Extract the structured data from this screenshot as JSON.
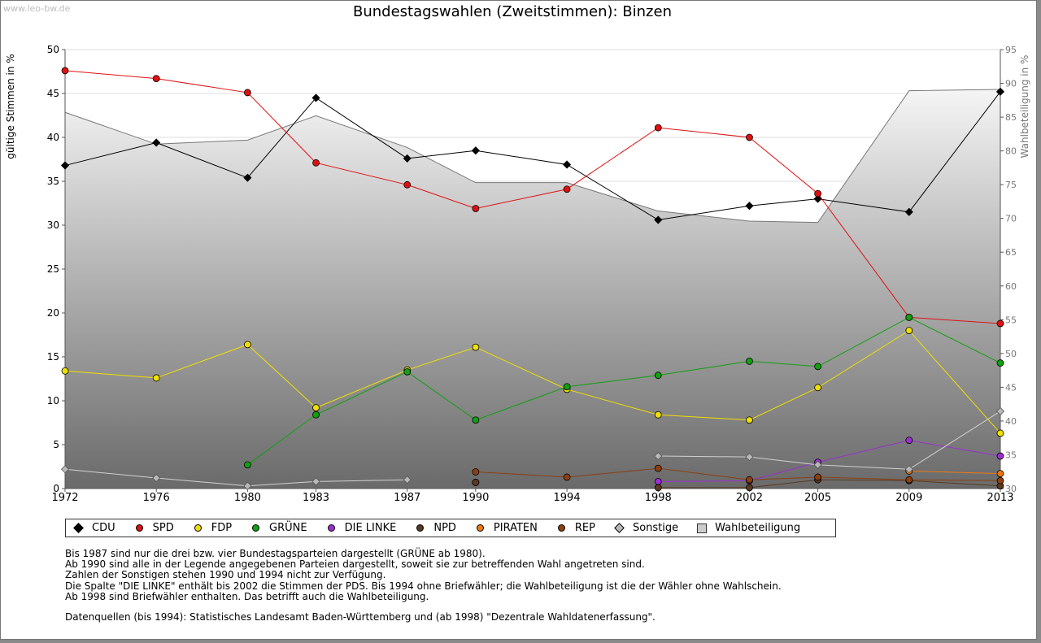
{
  "watermark": "www.leo-bw.de",
  "title": "Bundestagswahlen (Zweitstimmen): Binzen",
  "chart_data": {
    "type": "line",
    "title": "Bundestagswahlen (Zweitstimmen): Binzen",
    "ylabel": "gültige Stimmen in %",
    "y2label": "Wahlbeteiligung in %",
    "ylim": [
      0,
      50
    ],
    "y2lim": [
      30,
      95
    ],
    "yticks": [
      "0",
      "5",
      "10",
      "15",
      "20",
      "25",
      "30",
      "35",
      "40",
      "45",
      "50"
    ],
    "y2ticks": [
      "30",
      "35",
      "40",
      "45",
      "50",
      "55",
      "60",
      "65",
      "70",
      "75",
      "80",
      "85",
      "90",
      "95"
    ],
    "x": [
      "1972",
      "1976",
      "1980",
      "1983",
      "1987",
      "1990",
      "1994",
      "1998",
      "2002",
      "2005",
      "2009",
      "2013"
    ],
    "grid": true,
    "series": [
      {
        "name": "CDU",
        "color": "#000000",
        "values": [
          36.8,
          39.4,
          35.4,
          44.5,
          37.6,
          38.5,
          36.9,
          30.6,
          32.2,
          33.0,
          31.5,
          45.2
        ]
      },
      {
        "name": "SPD",
        "color": "#e01010",
        "values": [
          47.6,
          46.7,
          45.1,
          37.1,
          34.6,
          31.9,
          34.1,
          41.1,
          40.0,
          33.6,
          19.5,
          18.8
        ]
      },
      {
        "name": "FDP",
        "color": "#f0e000",
        "values": [
          13.4,
          12.6,
          16.4,
          9.2,
          13.5,
          16.1,
          11.3,
          8.4,
          7.8,
          11.5,
          18.0,
          6.3
        ]
      },
      {
        "name": "GRÜNE",
        "color": "#10a010",
        "values": [
          null,
          null,
          2.7,
          8.4,
          13.3,
          7.8,
          11.6,
          12.9,
          14.5,
          13.9,
          19.5,
          14.3
        ]
      },
      {
        "name": "DIE LINKE",
        "color": "#9b30d0",
        "values": [
          null,
          null,
          null,
          null,
          null,
          0.7,
          null,
          0.8,
          0.9,
          3.0,
          5.5,
          3.7
        ]
      },
      {
        "name": "NPD",
        "color": "#5a3a20",
        "values": [
          null,
          null,
          null,
          null,
          null,
          0.7,
          null,
          0.1,
          0.1,
          1.0,
          0.9,
          0.3
        ]
      },
      {
        "name": "PIRATEN",
        "color": "#f07810",
        "values": [
          null,
          null,
          null,
          null,
          null,
          null,
          null,
          null,
          null,
          null,
          2.0,
          1.7
        ]
      },
      {
        "name": "REP",
        "color": "#8b4010",
        "values": [
          null,
          null,
          null,
          null,
          null,
          1.9,
          1.3,
          2.3,
          1.0,
          1.3,
          1.0,
          0.9
        ]
      },
      {
        "name": "Sonstige",
        "color": "#b8b8b8",
        "values": [
          2.2,
          1.2,
          0.3,
          0.8,
          1.0,
          null,
          null,
          3.7,
          3.6,
          2.7,
          2.2,
          8.8
        ]
      }
    ],
    "wahlbeteiligung": {
      "name": "Wahlbeteiligung",
      "values": [
        85.7,
        81.0,
        81.6,
        85.2,
        80.5,
        75.3,
        75.3,
        71.1,
        69.6,
        69.4,
        88.9,
        89.1
      ]
    }
  },
  "legend": [
    {
      "label": "CDU",
      "color": "#000000"
    },
    {
      "label": "SPD",
      "color": "#e01010"
    },
    {
      "label": "FDP",
      "color": "#f0e000"
    },
    {
      "label": "GRÜNE",
      "color": "#10a010"
    },
    {
      "label": "DIE LINKE",
      "color": "#9b30d0"
    },
    {
      "label": "NPD",
      "color": "#5a3a20"
    },
    {
      "label": "PIRATEN",
      "color": "#f07810"
    },
    {
      "label": "REP",
      "color": "#8b4010"
    },
    {
      "label": "Sonstige",
      "color": "#b8b8b8"
    },
    {
      "label": "Wahlbeteiligung",
      "color": "#cccccc"
    }
  ],
  "notes": [
    "Bis 1987 sind nur die drei bzw. vier Bundestagsparteien dargestellt (GRÜNE ab 1980).",
    "Ab 1990 sind alle in der Legende angegebenen Parteien dargestellt, soweit sie zur betreffenden Wahl angetreten sind.",
    "Zahlen der Sonstigen stehen 1990 und 1994 nicht zur Verfügung.",
    "Die Spalte \"DIE LINKE\" enthält bis 2002 die Stimmen der PDS. Bis 1994 ohne Briefwähler; die Wahlbeteiligung ist die der Wähler ohne Wahlschein.",
    "Ab 1998 sind Briefwähler enthalten. Das betrifft auch die Wahlbeteiligung."
  ],
  "source": "Datenquellen (bis 1994): Statistisches Landesamt Baden-Württemberg und (ab 1998) \"Dezentrale Wahldatenerfassung\"."
}
